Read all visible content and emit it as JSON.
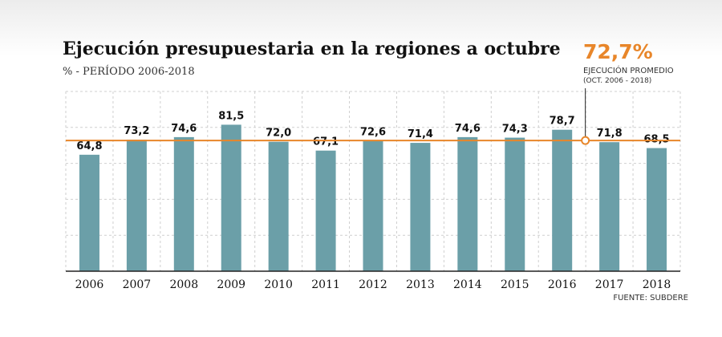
{
  "chart_data": {
    "type": "bar",
    "title": "Ejecución presupuestaria en la regiones a octubre",
    "subtitle": "% - PERÍODO 2006-2018",
    "categories": [
      "2006",
      "2007",
      "2008",
      "2009",
      "2010",
      "2011",
      "2012",
      "2013",
      "2014",
      "2015",
      "2016",
      "2017",
      "2018"
    ],
    "values": [
      64.8,
      73.2,
      74.6,
      81.5,
      72.0,
      67.1,
      72.6,
      71.4,
      74.6,
      74.3,
      78.7,
      71.8,
      68.5
    ],
    "value_labels": [
      "64,8",
      "73,2",
      "74,6",
      "81,5",
      "72,0",
      "67,1",
      "72,6",
      "71,4",
      "74,6",
      "74,3",
      "78,7",
      "71,8",
      "68,5"
    ],
    "ylim": [
      0,
      100
    ],
    "grid": true,
    "bar_color": "#6b9fa8",
    "reference_line": {
      "value": 72.7,
      "display": "72,7%",
      "label": "EJECUCIÓN PROMEDIO",
      "period": "(OCT. 2006 - 2018)",
      "color": "#e8862a"
    },
    "source": "FUENTE: SUBDERE"
  }
}
